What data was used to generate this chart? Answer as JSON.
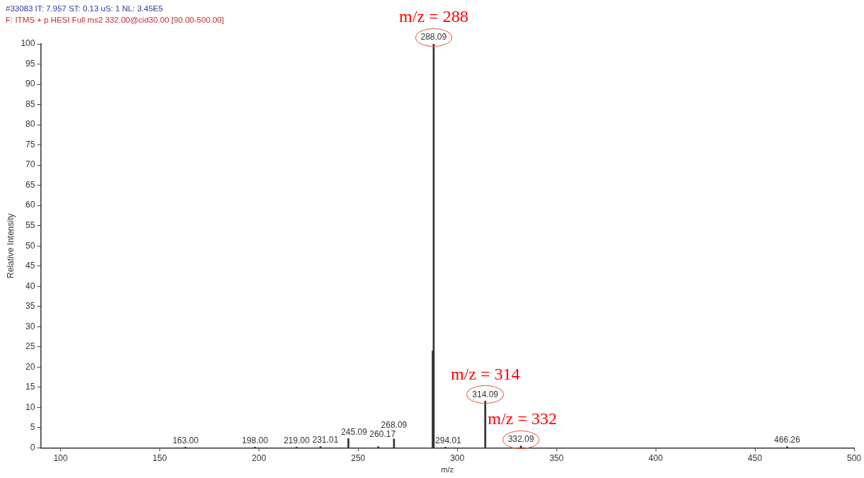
{
  "chart_data": {
    "type": "bar",
    "title": "#33083  IT: 7.957  ST: 0.13  uS: 1  NL: 3.45E5",
    "subtitle": "F: ITMS + p HESI Full ms2 332.00@cid30.00 [90.00-500.00]",
    "xlabel": "m/z",
    "ylabel": "Relative Intensity",
    "x": [
      163.0,
      198.0,
      219.0,
      231.01,
      245.09,
      260.17,
      268.09,
      287.6,
      288.09,
      294.01,
      314.09,
      332.09,
      466.26
    ],
    "values": [
      0.2,
      0.2,
      0.2,
      0.3,
      2.3,
      0.3,
      2.2,
      24,
      100,
      0.2,
      11.6,
      0.5,
      0.3
    ],
    "color": "#333333",
    "xlim": [
      90,
      500
    ],
    "xticks": [
      100,
      150,
      200,
      250,
      300,
      350,
      400,
      450,
      500
    ],
    "ylim": [
      0,
      100
    ],
    "yticks": [
      0,
      5,
      10,
      15,
      20,
      25,
      30,
      35,
      40,
      45,
      50,
      55,
      60,
      65,
      70,
      75,
      80,
      85,
      90,
      95,
      100
    ],
    "grid": false,
    "legend": false,
    "annotations": [
      {
        "text": "163.00",
        "x": 163.0,
        "y": 0.2
      },
      {
        "text": "198.00",
        "x": 198.0,
        "y": 0.2
      },
      {
        "text": "219.00",
        "x": 219.0,
        "y": 0.2
      },
      {
        "text": "231.01",
        "x": 231.01,
        "y": 0.3
      },
      {
        "text": "245.09",
        "x": 245.09,
        "y": 2.3
      },
      {
        "text": "260.17",
        "x": 260.17,
        "y": 0.3
      },
      {
        "text": "268.09",
        "x": 268.09,
        "y": 2.2
      },
      {
        "text": "288.09",
        "x": 288.09,
        "y": 100
      },
      {
        "text": "294.01",
        "x": 294.01,
        "y": 0.2
      },
      {
        "text": "314.09",
        "x": 314.09,
        "y": 11.6
      },
      {
        "text": "332.09",
        "x": 332.09,
        "y": 0.5
      },
      {
        "text": "466.26",
        "x": 466.26,
        "y": 0.3
      },
      {
        "text": "m/z = 288",
        "x": 288.09,
        "y": 100
      },
      {
        "text": "m/z = 314",
        "x": 314.09,
        "y": 11.6
      },
      {
        "text": "m/z = 332",
        "x": 332.09,
        "y": 0.5
      }
    ]
  }
}
